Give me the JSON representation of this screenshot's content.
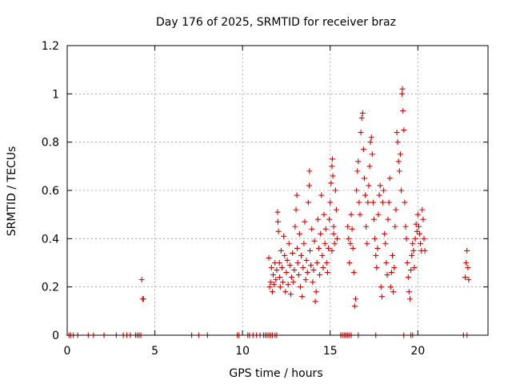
{
  "chart_data": {
    "type": "scatter",
    "title": "Day 176 of 2025, SRMTID for receiver braz",
    "xlabel": "GPS time / hours",
    "ylabel": "SRMTID / TECUs",
    "xlim": [
      0,
      24
    ],
    "ylim": [
      0,
      1.2
    ],
    "xticks": [
      0,
      5,
      10,
      15,
      20
    ],
    "xtick_labels": [
      "0",
      "5",
      "10",
      "15",
      "20"
    ],
    "yticks": [
      0,
      0.2,
      0.4,
      0.6,
      0.8,
      1.0,
      1.2
    ],
    "ytick_labels": [
      "0",
      "0.2",
      "0.4",
      "0.6",
      "0.8",
      "1",
      "1.2"
    ],
    "grid": true,
    "marker": "+",
    "series": [
      {
        "name": "SRMTID",
        "color": "#e00000",
        "points": [
          [
            0.1,
            0
          ],
          [
            0.2,
            0
          ],
          [
            0.35,
            0
          ],
          [
            0.6,
            0
          ],
          [
            1.2,
            0
          ],
          [
            1.5,
            0
          ],
          [
            2.1,
            0
          ],
          [
            2.8,
            0
          ],
          [
            3.2,
            0
          ],
          [
            3.4,
            0
          ],
          [
            3.6,
            0
          ],
          [
            3.9,
            0
          ],
          [
            4.0,
            0
          ],
          [
            4.1,
            0
          ],
          [
            4.2,
            0
          ],
          [
            4.25,
            0.23
          ],
          [
            4.3,
            0.15
          ],
          [
            4.35,
            0.15
          ],
          [
            7.1,
            0
          ],
          [
            7.5,
            0
          ],
          [
            8.0,
            0
          ],
          [
            9.7,
            0
          ],
          [
            9.8,
            0
          ],
          [
            10.3,
            0
          ],
          [
            10.4,
            0
          ],
          [
            10.6,
            0
          ],
          [
            10.8,
            0
          ],
          [
            11.0,
            0
          ],
          [
            11.2,
            0
          ],
          [
            11.3,
            0
          ],
          [
            11.4,
            0
          ],
          [
            11.5,
            0
          ],
          [
            11.6,
            0
          ],
          [
            11.7,
            0
          ],
          [
            11.85,
            0
          ],
          [
            11.95,
            0
          ],
          [
            15.6,
            0
          ],
          [
            15.7,
            0
          ],
          [
            15.8,
            0
          ],
          [
            15.9,
            0
          ],
          [
            16.0,
            0
          ],
          [
            16.1,
            0
          ],
          [
            16.2,
            0
          ],
          [
            16.6,
            0
          ],
          [
            17.6,
            0
          ],
          [
            19.2,
            0
          ],
          [
            19.6,
            0
          ],
          [
            19.7,
            0
          ],
          [
            22.6,
            0
          ],
          [
            22.8,
            0
          ],
          [
            11.5,
            0.32
          ],
          [
            11.55,
            0.2
          ],
          [
            11.6,
            0.22
          ],
          [
            11.65,
            0.28
          ],
          [
            11.7,
            0.18
          ],
          [
            11.75,
            0.25
          ],
          [
            11.8,
            0.21
          ],
          [
            11.85,
            0.3
          ],
          [
            11.9,
            0.23
          ],
          [
            11.95,
            0.27
          ],
          [
            12.0,
            0.51
          ],
          [
            12.02,
            0.47
          ],
          [
            12.05,
            0.43
          ],
          [
            12.1,
            0.3
          ],
          [
            12.12,
            0.24
          ],
          [
            12.15,
            0.2
          ],
          [
            12.2,
            0.35
          ],
          [
            12.25,
            0.28
          ],
          [
            12.3,
            0.22
          ],
          [
            12.35,
            0.41
          ],
          [
            12.4,
            0.33
          ],
          [
            12.45,
            0.18
          ],
          [
            12.5,
            0.26
          ],
          [
            12.55,
            0.31
          ],
          [
            12.6,
            0.21
          ],
          [
            12.65,
            0.38
          ],
          [
            12.7,
            0.29
          ],
          [
            12.75,
            0.17
          ],
          [
            12.8,
            0.24
          ],
          [
            12.85,
            0.34
          ],
          [
            12.9,
            0.22
          ],
          [
            12.95,
            0.27
          ],
          [
            13.0,
            0.45
          ],
          [
            13.05,
            0.52
          ],
          [
            13.1,
            0.58
          ],
          [
            13.12,
            0.36
          ],
          [
            13.15,
            0.3
          ],
          [
            13.2,
            0.25
          ],
          [
            13.25,
            0.42
          ],
          [
            13.3,
            0.2
          ],
          [
            13.35,
            0.33
          ],
          [
            13.4,
            0.16
          ],
          [
            13.45,
            0.28
          ],
          [
            13.5,
            0.38
          ],
          [
            13.55,
            0.47
          ],
          [
            13.6,
            0.23
          ],
          [
            13.65,
            0.31
          ],
          [
            13.7,
            0.26
          ],
          [
            13.75,
            0.55
          ],
          [
            13.8,
            0.62
          ],
          [
            13.82,
            0.68
          ],
          [
            13.85,
            0.35
          ],
          [
            13.9,
            0.29
          ],
          [
            13.95,
            0.44
          ],
          [
            14.0,
            0.22
          ],
          [
            14.05,
            0.27
          ],
          [
            14.1,
            0.39
          ],
          [
            14.15,
            0.14
          ],
          [
            14.2,
            0.18
          ],
          [
            14.25,
            0.3
          ],
          [
            14.3,
            0.48
          ],
          [
            14.35,
            0.36
          ],
          [
            14.4,
            0.25
          ],
          [
            14.45,
            0.42
          ],
          [
            14.5,
            0.58
          ],
          [
            14.55,
            0.33
          ],
          [
            14.6,
            0.28
          ],
          [
            14.65,
            0.5
          ],
          [
            14.7,
            0.38
          ],
          [
            14.75,
            0.44
          ],
          [
            14.8,
            0.3
          ],
          [
            14.85,
            0.26
          ],
          [
            14.9,
            0.36
          ],
          [
            14.95,
            0.48
          ],
          [
            15.0,
            0.55
          ],
          [
            15.05,
            0.63
          ],
          [
            15.1,
            0.7
          ],
          [
            15.12,
            0.73
          ],
          [
            15.15,
            0.66
          ],
          [
            15.2,
            0.45
          ],
          [
            15.25,
            0.38
          ],
          [
            15.3,
            0.6
          ],
          [
            15.35,
            0.52
          ],
          [
            15.4,
            0.4
          ],
          [
            15.1,
            0.35
          ],
          [
            15.2,
            0.42
          ],
          [
            16.0,
            0.45
          ],
          [
            16.05,
            0.4
          ],
          [
            16.1,
            0.3
          ],
          [
            16.15,
            0.38
          ],
          [
            16.2,
            0.5
          ],
          [
            16.25,
            0.44
          ],
          [
            16.3,
            0.36
          ],
          [
            16.35,
            0.26
          ],
          [
            16.4,
            0.12
          ],
          [
            16.45,
            0.15
          ],
          [
            16.5,
            0.6
          ],
          [
            16.55,
            0.68
          ],
          [
            16.6,
            0.72
          ],
          [
            16.65,
            0.55
          ],
          [
            16.7,
            0.5
          ],
          [
            16.75,
            0.84
          ],
          [
            16.8,
            0.9
          ],
          [
            16.85,
            0.92
          ],
          [
            16.9,
            0.77
          ],
          [
            16.95,
            0.65
          ],
          [
            17.0,
            0.58
          ],
          [
            17.05,
            0.45
          ],
          [
            17.1,
            0.38
          ],
          [
            17.15,
            0.55
          ],
          [
            17.2,
            0.62
          ],
          [
            17.25,
            0.7
          ],
          [
            17.3,
            0.8
          ],
          [
            17.35,
            0.82
          ],
          [
            17.4,
            0.75
          ],
          [
            17.45,
            0.55
          ],
          [
            17.5,
            0.48
          ],
          [
            17.55,
            0.4
          ],
          [
            17.6,
            0.33
          ],
          [
            17.65,
            0.28
          ],
          [
            17.7,
            0.36
          ],
          [
            17.75,
            0.5
          ],
          [
            17.8,
            0.58
          ],
          [
            17.85,
            0.62
          ],
          [
            17.9,
            0.2
          ],
          [
            17.95,
            0.16
          ],
          [
            18.0,
            0.55
          ],
          [
            18.05,
            0.6
          ],
          [
            18.1,
            0.42
          ],
          [
            18.15,
            0.38
          ],
          [
            18.2,
            0.3
          ],
          [
            18.25,
            0.25
          ],
          [
            18.3,
            0.48
          ],
          [
            18.35,
            0.55
          ],
          [
            18.4,
            0.65
          ],
          [
            18.45,
            0.2
          ],
          [
            18.5,
            0.26
          ],
          [
            18.55,
            0.33
          ],
          [
            18.6,
            0.18
          ],
          [
            18.65,
            0.28
          ],
          [
            18.7,
            0.45
          ],
          [
            18.75,
            0.52
          ],
          [
            18.8,
            0.84
          ],
          [
            18.85,
            0.8
          ],
          [
            18.9,
            0.72
          ],
          [
            18.95,
            0.68
          ],
          [
            19.0,
            0.75
          ],
          [
            19.05,
            0.6
          ],
          [
            19.1,
            1.0
          ],
          [
            19.12,
            1.02
          ],
          [
            19.15,
            0.93
          ],
          [
            19.2,
            0.85
          ],
          [
            19.25,
            0.55
          ],
          [
            19.3,
            0.45
          ],
          [
            19.35,
            0.4
          ],
          [
            19.4,
            0.3
          ],
          [
            19.45,
            0.24
          ],
          [
            19.5,
            0.18
          ],
          [
            19.55,
            0.15
          ],
          [
            19.6,
            0.27
          ],
          [
            19.65,
            0.33
          ],
          [
            19.7,
            0.38
          ],
          [
            19.75,
            0.35
          ],
          [
            19.8,
            0.28
          ],
          [
            19.85,
            0.4
          ],
          [
            19.9,
            0.46
          ],
          [
            19.95,
            0.43
          ],
          [
            20.0,
            0.5
          ],
          [
            20.05,
            0.45
          ],
          [
            20.1,
            0.42
          ],
          [
            20.15,
            0.38
          ],
          [
            20.2,
            0.35
          ],
          [
            20.25,
            0.52
          ],
          [
            20.3,
            0.48
          ],
          [
            20.35,
            0.4
          ],
          [
            20.4,
            0.35
          ],
          [
            22.7,
            0.24
          ],
          [
            22.75,
            0.3
          ],
          [
            22.8,
            0.35
          ],
          [
            22.85,
            0.28
          ],
          [
            22.9,
            0.23
          ]
        ]
      }
    ]
  }
}
